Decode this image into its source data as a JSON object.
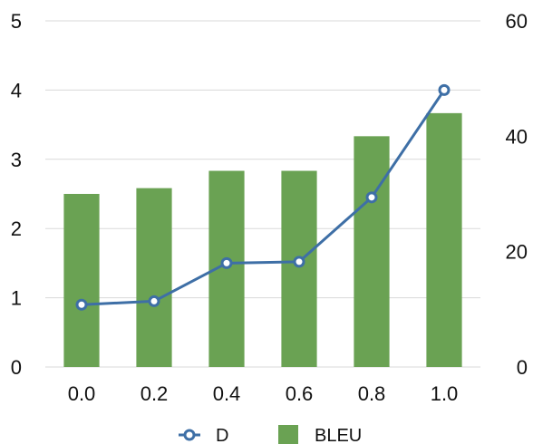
{
  "chart_data": {
    "type": "bar",
    "categories": [
      "0.0",
      "0.2",
      "0.4",
      "0.6",
      "0.8",
      "1.0"
    ],
    "series": [
      {
        "name": "BLEU",
        "type": "bar",
        "axis": "right",
        "values": [
          30,
          31,
          34,
          34,
          40,
          44
        ],
        "color": "#6aa253"
      },
      {
        "name": "D",
        "type": "line",
        "axis": "left",
        "values": [
          0.9,
          0.95,
          1.5,
          1.52,
          2.45,
          4.0
        ],
        "color": "#3e6fa6"
      }
    ],
    "y_left": {
      "min": 0,
      "max": 5,
      "ticks": [
        "0",
        "1",
        "2",
        "3",
        "4",
        "5"
      ]
    },
    "y_right": {
      "min": 0,
      "max": 60,
      "ticks": [
        "0",
        "20",
        "40",
        "60"
      ]
    },
    "grid": true,
    "legend_position": "bottom"
  }
}
